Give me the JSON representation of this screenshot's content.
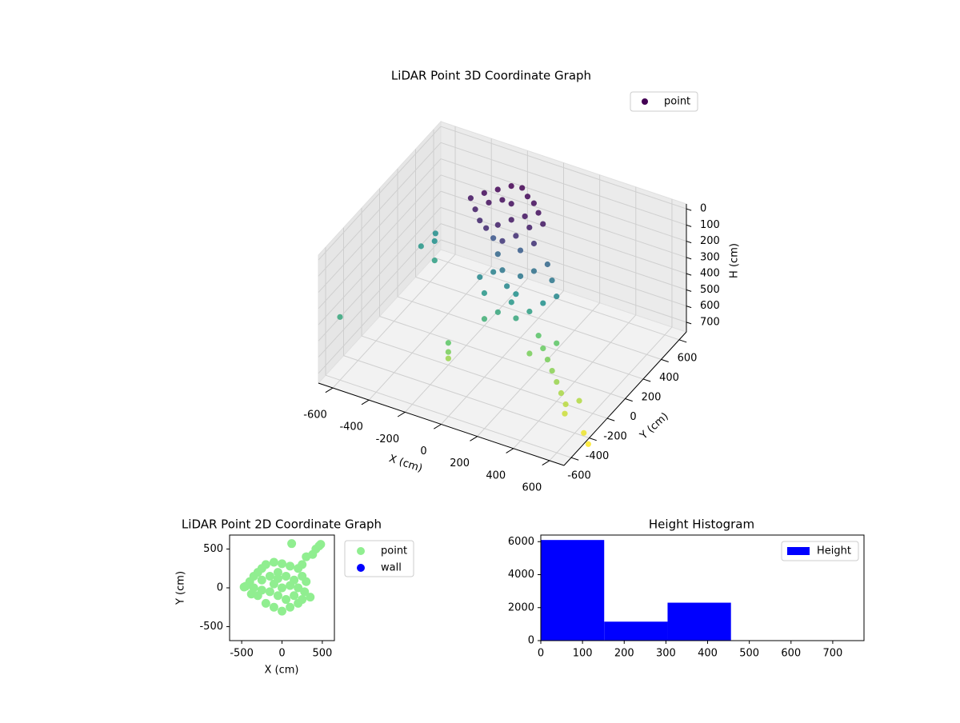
{
  "chart_data": [
    {
      "type": "scatter3d",
      "title": "LiDAR Point 3D Coordinate Graph",
      "xlabel": "X (cm)",
      "ylabel": "Y (cm)",
      "zlabel": "H (cm)",
      "xlim": [
        -680,
        680
      ],
      "ylim": [
        -680,
        680
      ],
      "zlim": [
        760,
        -30
      ],
      "xticks": [
        -600,
        -400,
        -200,
        0,
        200,
        400,
        600
      ],
      "yticks": [
        -600,
        -400,
        -200,
        0,
        200,
        400,
        600
      ],
      "zticks": [
        0,
        100,
        200,
        300,
        400,
        500,
        600,
        700
      ],
      "colormap": "viridis",
      "legend": "upper right",
      "series": [
        {
          "name": "point",
          "x": [
            -250,
            -200,
            -150,
            -100,
            -50,
            0,
            50,
            -300,
            -250,
            -200,
            -150,
            -100,
            -50,
            0,
            50,
            100,
            -200,
            -150,
            -100,
            0,
            -50,
            100,
            -150,
            -100,
            -50,
            0,
            50,
            100,
            150,
            200,
            250,
            -100,
            -150,
            0,
            50,
            100,
            150,
            -50,
            0,
            200,
            -100,
            50,
            -500,
            -550,
            -450,
            -520,
            200,
            250,
            300,
            350,
            200,
            300,
            400,
            450,
            500,
            550,
            520,
            650,
            700,
            -650,
            -150,
            -150,
            -160
          ],
          "y": [
            300,
            350,
            400,
            420,
            380,
            350,
            300,
            250,
            200,
            150,
            120,
            150,
            200,
            250,
            200,
            250,
            250,
            300,
            300,
            150,
            100,
            150,
            200,
            150,
            100,
            50,
            0,
            -50,
            0,
            50,
            100,
            0,
            50,
            -50,
            100,
            150,
            200,
            -100,
            200,
            150,
            100,
            50,
            250,
            200,
            150,
            300,
            0,
            -50,
            -100,
            -150,
            -100,
            0,
            -200,
            -250,
            -300,
            -250,
            -350,
            -400,
            -450,
            -500,
            -300,
            -300,
            -280
          ],
          "z": [
            20,
            10,
            0,
            5,
            15,
            20,
            30,
            40,
            60,
            80,
            90,
            70,
            50,
            40,
            60,
            50,
            30,
            25,
            30,
            100,
            120,
            110,
            200,
            250,
            300,
            350,
            400,
            450,
            420,
            380,
            350,
            400,
            350,
            450,
            300,
            280,
            250,
            480,
            220,
            300,
            330,
            380,
            380,
            400,
            420,
            370,
            550,
            580,
            600,
            620,
            600,
            560,
            640,
            660,
            680,
            670,
            700,
            740,
            760,
            450,
            600,
            640,
            560
          ]
        }
      ]
    },
    {
      "type": "scatter",
      "title": "LiDAR Point 2D Coordinate Graph",
      "xlabel": "X (cm)",
      "ylabel": "Y (cm)",
      "xlim": [
        -650,
        650
      ],
      "ylim": [
        -680,
        680
      ],
      "xticks": [
        -500,
        0,
        500
      ],
      "yticks": [
        -500,
        0,
        500
      ],
      "legend": "outside right",
      "series": [
        {
          "name": "point",
          "color": "#90ee90",
          "x": [
            -450,
            -400,
            -350,
            -300,
            -250,
            -200,
            -100,
            0,
            100,
            200,
            250,
            300,
            280,
            250,
            200,
            100,
            0,
            -100,
            -200,
            -300,
            -380,
            -350,
            -250,
            -150,
            -50,
            50,
            150,
            200,
            150,
            50,
            -50,
            -150,
            -250,
            -100,
            0,
            100,
            -50,
            350,
            120,
            300,
            380,
            420,
            460,
            480,
            250,
            -470
          ],
          "y": [
            20,
            80,
            150,
            200,
            250,
            300,
            330,
            310,
            280,
            250,
            150,
            80,
            -50,
            -150,
            -200,
            -250,
            -300,
            -250,
            -200,
            -100,
            -80,
            0,
            100,
            150,
            200,
            150,
            100,
            0,
            -100,
            -150,
            -100,
            -50,
            -30,
            50,
            0,
            30,
            120,
            -120,
            570,
            400,
            430,
            500,
            540,
            560,
            300,
            10
          ]
        },
        {
          "name": "wall",
          "color": "#0000ff",
          "x": [],
          "y": []
        }
      ]
    },
    {
      "type": "histogram",
      "title": "Height Histogram",
      "bins": [
        0,
        152,
        304,
        456,
        608,
        760
      ],
      "series": [
        {
          "name": "Height",
          "color": "#0000ff",
          "values": [
            6100,
            1150,
            2300,
            0,
            0
          ]
        }
      ],
      "xlim": [
        0,
        775
      ],
      "ylim": [
        0,
        6400
      ],
      "xticks": [
        0,
        100,
        200,
        300,
        400,
        500,
        600,
        700
      ],
      "yticks": [
        0,
        2000,
        4000,
        6000
      ],
      "legend": "upper right"
    }
  ]
}
